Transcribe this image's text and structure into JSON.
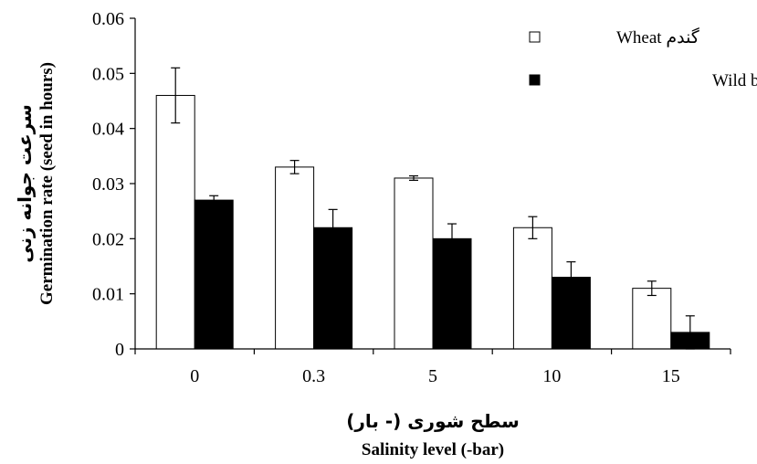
{
  "chart_data": {
    "type": "bar",
    "categories": [
      "0",
      "0.3",
      "5",
      "10",
      "15"
    ],
    "series": [
      {
        "name": "گندم Wheat",
        "color": "#ffffff",
        "values": [
          0.046,
          0.033,
          0.031,
          0.022,
          0.011
        ],
        "errors": [
          0.005,
          0.0012,
          0.0004,
          0.002,
          0.0013
        ]
      },
      {
        "name": "جودره Wild barely",
        "color": "#000000",
        "values": [
          0.027,
          0.022,
          0.02,
          0.013,
          0.003
        ],
        "errors": [
          0.0008,
          0.0033,
          0.0027,
          0.0028,
          0.003
        ]
      }
    ],
    "yticks": [
      "0",
      "0.01",
      "0.02",
      "0.03",
      "0.04",
      "0.05",
      "0.06"
    ],
    "ylim": [
      0,
      0.06
    ],
    "xlabel_fa": "سطح شوری (- بار)",
    "xlabel": "Salinity level (-bar)",
    "ylabel_fa": "سرعت جوانه زنی",
    "ylabel": "Germination rate (seed in hours)",
    "grid": false,
    "legend_position": "top-right"
  }
}
